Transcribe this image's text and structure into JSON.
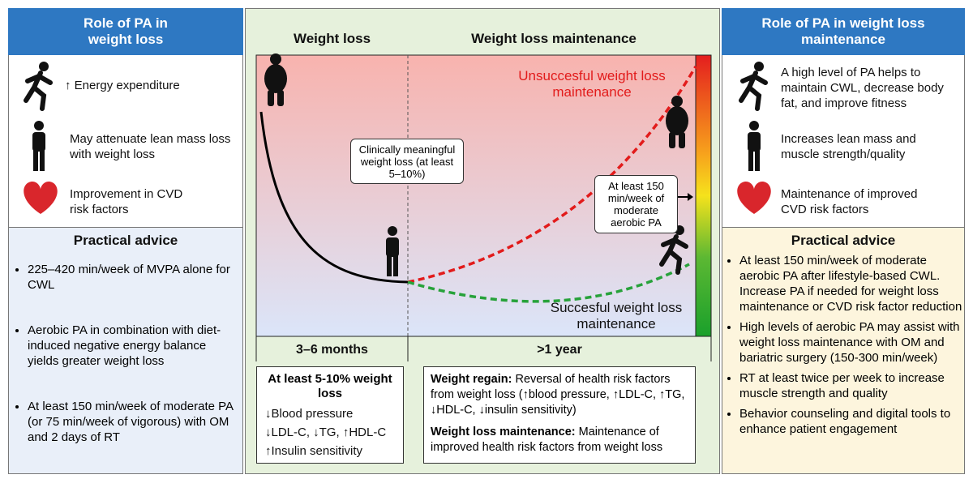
{
  "left_panel": {
    "header": "Role of PA in weight loss",
    "items": [
      "↑ Energy expenditure",
      "May attenuate lean mass loss with weight loss",
      "Improvement in CVD risk factors"
    ],
    "advice_title": "Practical advice",
    "advice": [
      "225–420 min/week of MVPA alone for CWL",
      "Aerobic PA in combination with diet-induced negative energy balance yields greater weight loss",
      "At least 150 min/week of moderate PA (or 75 min/week of vigorous) with OM and 2 days of RT"
    ]
  },
  "center_panel": {
    "titles": [
      "Weight loss",
      "Weight loss maintenance"
    ],
    "unsuccessful_label": "Unsuccesful weight loss maintenance",
    "successful_label": "Succesful weight loss maintenance",
    "callouts": [
      "Clinically meaningful weight loss (at least 5–10%)",
      "At least 150 min/week of moderate aerobic PA"
    ],
    "periods": [
      "3–6 months",
      ">1 year"
    ],
    "left_box": {
      "title": "At least 5-10% weight loss",
      "items": [
        "↓Blood pressure",
        "↓LDL-C, ↓TG, ↑HDL-C",
        "↑Insulin sensitivity"
      ]
    },
    "right_box": [
      {
        "label": "Weight regain:",
        "text": "Reversal of health risk factors from weight loss (↑blood pressure, ↑LDL-C, ↑TG, ↓HDL-C, ↓insulin sensitivity)"
      },
      {
        "label": "Weight loss maintenance:",
        "text": "Maintenance of improved health risk factors from weight loss"
      }
    ]
  },
  "right_panel": {
    "header": "Role of PA in weight loss maintenance",
    "items": [
      "A high level of PA helps to maintain CWL, decrease body fat, and improve fitness",
      "Increases lean mass and muscle strength/quality",
      "Maintenance of improved CVD risk factors"
    ],
    "advice_title": "Practical advice",
    "advice": [
      "At least 150 min/week of moderate aerobic PA after lifestyle-based CWL. Increase PA if needed for weight loss maintenance or CVD risk factor reduction",
      "High levels of aerobic PA may assist with weight loss maintenance with OM and bariatric surgery (150-300 min/week)",
      "RT at least twice per week to increase muscle strength and quality",
      "Behavior counseling and digital tools to enhance patient engagement"
    ]
  }
}
